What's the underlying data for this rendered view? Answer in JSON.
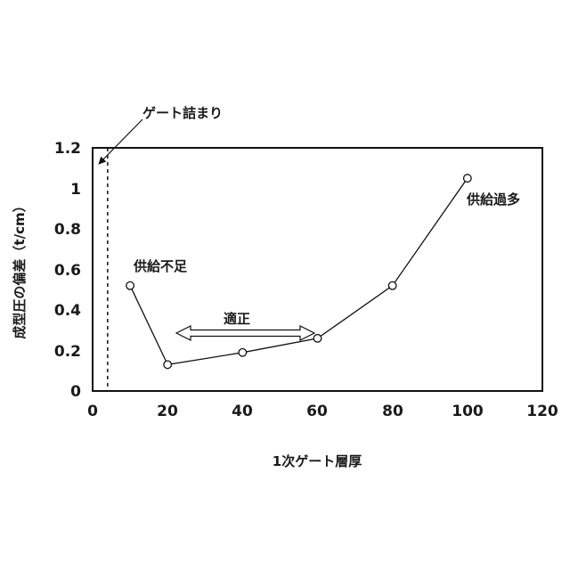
{
  "chart_data": {
    "type": "line",
    "xlabel": "1次ゲート層厚",
    "ylabel": "成型圧の偏差（t/cm）",
    "xlim": [
      0,
      120
    ],
    "ylim": [
      0,
      1.2
    ],
    "x_ticks": [
      "0",
      "20",
      "40",
      "60",
      "80",
      "100",
      "120"
    ],
    "y_ticks": [
      "0",
      "0.2",
      "0.4",
      "0.6",
      "0.8",
      "1",
      "1.2"
    ],
    "grid": false,
    "series": [
      {
        "x": [
          10,
          20,
          40,
          60,
          80,
          100
        ],
        "values": [
          0.52,
          0.13,
          0.19,
          0.26,
          0.52,
          1.05
        ],
        "marker": "open-circle"
      }
    ],
    "reference_line": {
      "x": 4,
      "style": "dashed"
    },
    "annotations": {
      "gate_clog": "ゲート詰まり",
      "supply_short": "供給不足",
      "proper": "適正",
      "supply_excess": "供給過多"
    }
  }
}
